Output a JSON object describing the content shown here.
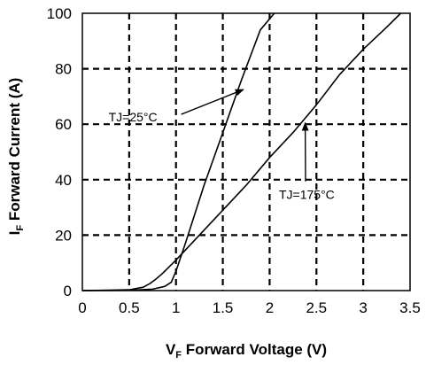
{
  "chart_data": {
    "type": "line",
    "xlabel": {
      "symbol": "V",
      "subscript": "F",
      "text": " Forward Voltage (V)"
    },
    "ylabel": {
      "symbol": "I",
      "subscript": "F",
      "text": " Forward Current (A)"
    },
    "xlim": [
      0,
      3.5
    ],
    "ylim": [
      0,
      100
    ],
    "xticks": [
      0,
      0.5,
      1,
      1.5,
      2,
      2.5,
      3,
      3.5
    ],
    "xtick_labels": [
      "0",
      "0.5",
      "1",
      "1.5",
      "2",
      "2.5",
      "3",
      "3.5"
    ],
    "yticks": [
      0,
      20,
      40,
      60,
      80,
      100
    ],
    "ytick_labels": [
      "0",
      "20",
      "40",
      "60",
      "80",
      "100"
    ],
    "grid": true,
    "grid_style": "dashed",
    "series": [
      {
        "label": "TJ=25°C",
        "color": "#000000",
        "x": [
          0,
          0.5,
          0.75,
          0.88,
          0.95,
          1.0,
          1.1,
          1.3,
          1.5,
          1.7,
          1.9,
          2.05
        ],
        "y": [
          0,
          0.1,
          0.5,
          1.5,
          3,
          7,
          17,
          38,
          57,
          76,
          94,
          100
        ]
      },
      {
        "label": "TJ=175°C",
        "color": "#000000",
        "x": [
          0,
          0.5,
          0.65,
          0.72,
          0.78,
          0.85,
          1.0,
          1.25,
          1.5,
          1.75,
          2.0,
          2.25,
          2.5,
          2.75,
          3.0,
          3.25,
          3.4
        ],
        "y": [
          0,
          0.3,
          1.2,
          2.5,
          4,
          6,
          11,
          20,
          29,
          38,
          48,
          57,
          67,
          78,
          87,
          95,
          100
        ]
      }
    ],
    "annotations": [
      {
        "text": "TJ=25°C",
        "series": 0,
        "text_x": 0.28,
        "text_y": 61,
        "arrow_to_x": 1.72,
        "arrow_to_y": 72.5
      },
      {
        "text": "TJ=175°C",
        "series": 1,
        "text_x": 2.1,
        "text_y": 33,
        "arrow_to_x": 2.38,
        "arrow_to_y": 60.5
      }
    ]
  }
}
